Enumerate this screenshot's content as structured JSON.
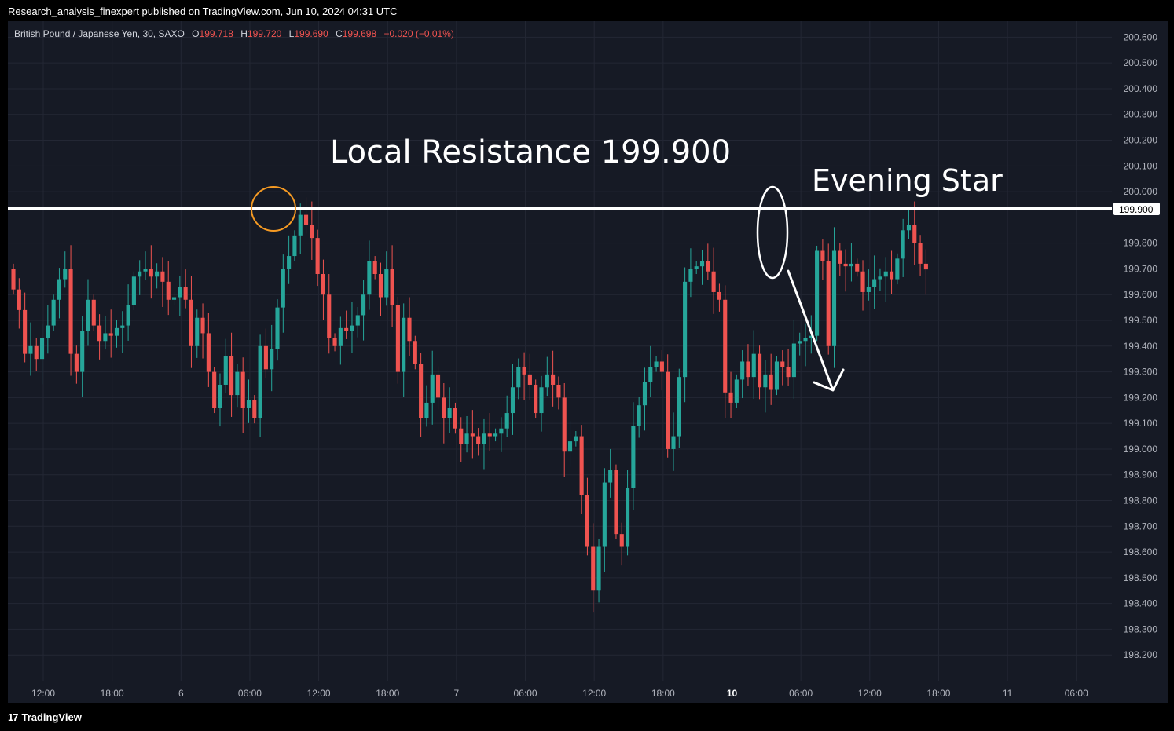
{
  "header": {
    "text": "Research_analysis_finexpert published on TradingView.com, Jun 10, 2024 04:31 UTC"
  },
  "footer": {
    "brand": "TradingView",
    "logo_icon": "tradingview-logo-icon"
  },
  "legend": {
    "symbol": "British Pound / Japanese Yen, 30, SAXO",
    "o_label": "O",
    "o_value": "199.718",
    "h_label": "H",
    "h_value": "199.720",
    "l_label": "L",
    "l_value": "199.690",
    "c_label": "C",
    "c_value": "199.698",
    "change": "−0.020 (−0.01%)"
  },
  "colors": {
    "background": "#161a25",
    "up": "#26a69a",
    "down": "#ef5350",
    "grid": "#232734",
    "axis_text": "#b2b5be",
    "resistance_line": "#ffffff",
    "highlight_circle": "#f59a23"
  },
  "chart_data": {
    "type": "candlestick",
    "symbol": "GBP/JPY",
    "timeframe": "30",
    "ylim": [
      198.1,
      200.65
    ],
    "y_ticks": [
      "200.600",
      "200.500",
      "200.400",
      "200.300",
      "200.200",
      "200.100",
      "200.000",
      "199.800",
      "199.700",
      "199.600",
      "199.500",
      "199.400",
      "199.300",
      "199.200",
      "199.100",
      "199.000",
      "198.900",
      "198.800",
      "198.700",
      "198.600",
      "198.500",
      "198.400",
      "198.300",
      "198.200"
    ],
    "x_ticks": [
      {
        "label": "12:00",
        "bold": false
      },
      {
        "label": "18:00",
        "bold": false
      },
      {
        "label": "6",
        "bold": false
      },
      {
        "label": "06:00",
        "bold": false
      },
      {
        "label": "12:00",
        "bold": false
      },
      {
        "label": "18:00",
        "bold": false
      },
      {
        "label": "7",
        "bold": false
      },
      {
        "label": "06:00",
        "bold": false
      },
      {
        "label": "12:00",
        "bold": false
      },
      {
        "label": "18:00",
        "bold": false
      },
      {
        "label": "10",
        "bold": true
      },
      {
        "label": "06:00",
        "bold": false
      },
      {
        "label": "12:00",
        "bold": false
      },
      {
        "label": "18:00",
        "bold": false
      },
      {
        "label": "11",
        "bold": false
      },
      {
        "label": "06:00",
        "bold": false
      }
    ],
    "resistance": {
      "value": 199.9,
      "price_label": "199.900"
    },
    "annotations": [
      {
        "text": "Local Resistance 199.900"
      },
      {
        "text": "Evening Star"
      }
    ],
    "closes": [
      199.62,
      199.54,
      199.37,
      199.4,
      199.35,
      199.43,
      199.48,
      199.58,
      199.66,
      199.7,
      199.37,
      199.3,
      199.46,
      199.58,
      199.48,
      199.42,
      199.45,
      199.44,
      199.47,
      199.48,
      199.56,
      199.67,
      199.69,
      199.7,
      199.67,
      199.69,
      199.65,
      199.58,
      199.59,
      199.63,
      199.58,
      199.4,
      199.51,
      199.45,
      199.3,
      199.16,
      199.25,
      199.36,
      199.21,
      199.3,
      199.16,
      199.19,
      199.12,
      199.4,
      199.31,
      199.39,
      199.55,
      199.7,
      199.75,
      199.83,
      199.91,
      199.87,
      199.82,
      199.68,
      199.6,
      199.43,
      199.4,
      199.47,
      199.46,
      199.48,
      199.52,
      199.6,
      199.73,
      199.68,
      199.59,
      199.7,
      199.56,
      199.3,
      199.51,
      199.42,
      199.33,
      199.12,
      199.18,
      199.29,
      199.2,
      199.12,
      199.16,
      199.08,
      199.02,
      199.06,
      199.05,
      199.02,
      199.06,
      199.05,
      199.06,
      199.08,
      199.14,
      199.24,
      199.32,
      199.29,
      199.25,
      199.14,
      199.24,
      199.29,
      199.25,
      199.2,
      198.99,
      199.03,
      199.05,
      198.82,
      198.62,
      198.45,
      198.62,
      198.87,
      198.92,
      198.67,
      198.62,
      198.85,
      199.09,
      199.17,
      199.26,
      199.32,
      199.34,
      199.3,
      199.0,
      199.05,
      199.28,
      199.65,
      199.7,
      199.71,
      199.73,
      199.69,
      199.61,
      199.58,
      199.22,
      199.18,
      199.27,
      199.34,
      199.28,
      199.37,
      199.24,
      199.29,
      199.23,
      199.34,
      199.32,
      199.28,
      199.41,
      199.42,
      199.43,
      199.44,
      199.77,
      199.73,
      199.4,
      199.77,
      199.72,
      199.71,
      199.72,
      199.69,
      199.61,
      199.63,
      199.66,
      199.67,
      199.69,
      199.66,
      199.74,
      199.85,
      199.87,
      199.8,
      199.72,
      199.698
    ]
  }
}
